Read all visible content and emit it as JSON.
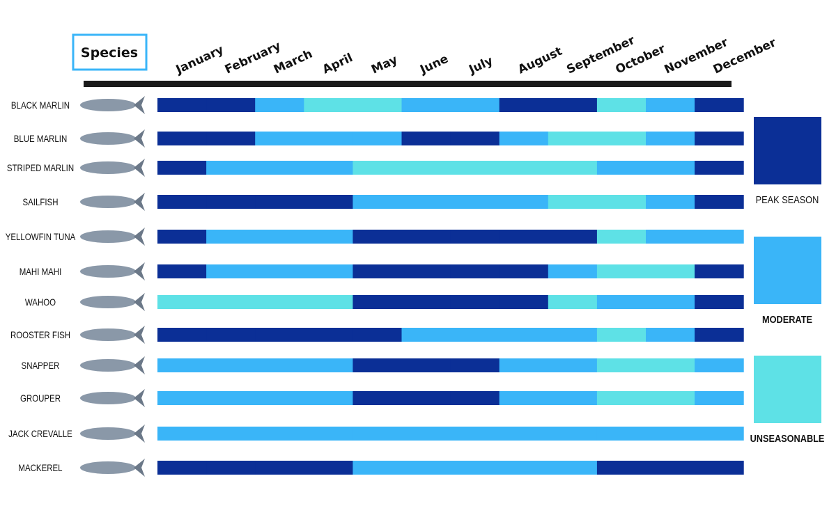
{
  "header": {
    "title": "Species"
  },
  "months": [
    "January",
    "February",
    "March",
    "April",
    "May",
    "June",
    "July",
    "August",
    "September",
    "October",
    "November",
    "December"
  ],
  "legend": [
    {
      "label": "PEAK SEASON",
      "color": "#0b2f96"
    },
    {
      "label": "MODERATE",
      "color": "#3ab5f8"
    },
    {
      "label": "UNSEASONABLE",
      "color": "#5ee1e6"
    }
  ],
  "species": [
    {
      "name": "BLACK MARLIN",
      "months": [
        "PEAK SEASON",
        "PEAK SEASON",
        "MODERATE",
        "UNSEASONABLE",
        "UNSEASONABLE",
        "MODERATE",
        "MODERATE",
        "PEAK SEASON",
        "PEAK SEASON",
        "UNSEASONABLE",
        "MODERATE",
        "PEAK SEASON"
      ]
    },
    {
      "name": "BLUE MARLIN",
      "months": [
        "PEAK SEASON",
        "PEAK SEASON",
        "MODERATE",
        "MODERATE",
        "MODERATE",
        "PEAK SEASON",
        "PEAK SEASON",
        "MODERATE",
        "UNSEASONABLE",
        "UNSEASONABLE",
        "MODERATE",
        "PEAK SEASON"
      ]
    },
    {
      "name": "STRIPED MARLIN",
      "months": [
        "PEAK SEASON",
        "MODERATE",
        "MODERATE",
        "MODERATE",
        "UNSEASONABLE",
        "UNSEASONABLE",
        "UNSEASONABLE",
        "UNSEASONABLE",
        "UNSEASONABLE",
        "MODERATE",
        "MODERATE",
        "PEAK SEASON"
      ]
    },
    {
      "name": "SAILFISH",
      "months": [
        "PEAK SEASON",
        "PEAK SEASON",
        "PEAK SEASON",
        "PEAK SEASON",
        "MODERATE",
        "MODERATE",
        "MODERATE",
        "MODERATE",
        "UNSEASONABLE",
        "UNSEASONABLE",
        "MODERATE",
        "PEAK SEASON"
      ]
    },
    {
      "name": "YELLOWFIN TUNA",
      "months": [
        "PEAK SEASON",
        "MODERATE",
        "MODERATE",
        "MODERATE",
        "PEAK SEASON",
        "PEAK SEASON",
        "PEAK SEASON",
        "PEAK SEASON",
        "PEAK SEASON",
        "UNSEASONABLE",
        "MODERATE",
        "MODERATE"
      ]
    },
    {
      "name": "MAHI MAHI",
      "months": [
        "PEAK SEASON",
        "MODERATE",
        "MODERATE",
        "MODERATE",
        "PEAK SEASON",
        "PEAK SEASON",
        "PEAK SEASON",
        "PEAK SEASON",
        "MODERATE",
        "UNSEASONABLE",
        "UNSEASONABLE",
        "PEAK SEASON"
      ]
    },
    {
      "name": "WAHOO",
      "months": [
        "UNSEASONABLE",
        "UNSEASONABLE",
        "UNSEASONABLE",
        "UNSEASONABLE",
        "PEAK SEASON",
        "PEAK SEASON",
        "PEAK SEASON",
        "PEAK SEASON",
        "UNSEASONABLE",
        "MODERATE",
        "MODERATE",
        "PEAK SEASON"
      ]
    },
    {
      "name": "ROOSTER FISH",
      "months": [
        "PEAK SEASON",
        "PEAK SEASON",
        "PEAK SEASON",
        "PEAK SEASON",
        "PEAK SEASON",
        "MODERATE",
        "MODERATE",
        "MODERATE",
        "MODERATE",
        "UNSEASONABLE",
        "MODERATE",
        "PEAK SEASON"
      ]
    },
    {
      "name": "SNAPPER",
      "months": [
        "MODERATE",
        "MODERATE",
        "MODERATE",
        "MODERATE",
        "PEAK SEASON",
        "PEAK SEASON",
        "PEAK SEASON",
        "MODERATE",
        "MODERATE",
        "UNSEASONABLE",
        "UNSEASONABLE",
        "MODERATE"
      ]
    },
    {
      "name": "GROUPER",
      "months": [
        "MODERATE",
        "MODERATE",
        "MODERATE",
        "MODERATE",
        "PEAK SEASON",
        "PEAK SEASON",
        "PEAK SEASON",
        "MODERATE",
        "MODERATE",
        "UNSEASONABLE",
        "UNSEASONABLE",
        "MODERATE"
      ]
    },
    {
      "name": "JACK CREVALLE",
      "months": [
        "MODERATE",
        "MODERATE",
        "MODERATE",
        "MODERATE",
        "MODERATE",
        "MODERATE",
        "MODERATE",
        "MODERATE",
        "MODERATE",
        "MODERATE",
        "MODERATE",
        "MODERATE"
      ]
    },
    {
      "name": "MACKEREL",
      "months": [
        "PEAK SEASON",
        "PEAK SEASON",
        "PEAK SEASON",
        "PEAK SEASON",
        "MODERATE",
        "MODERATE",
        "MODERATE",
        "MODERATE",
        "MODERATE",
        "PEAK SEASON",
        "PEAK SEASON",
        "PEAK SEASON"
      ]
    }
  ]
}
